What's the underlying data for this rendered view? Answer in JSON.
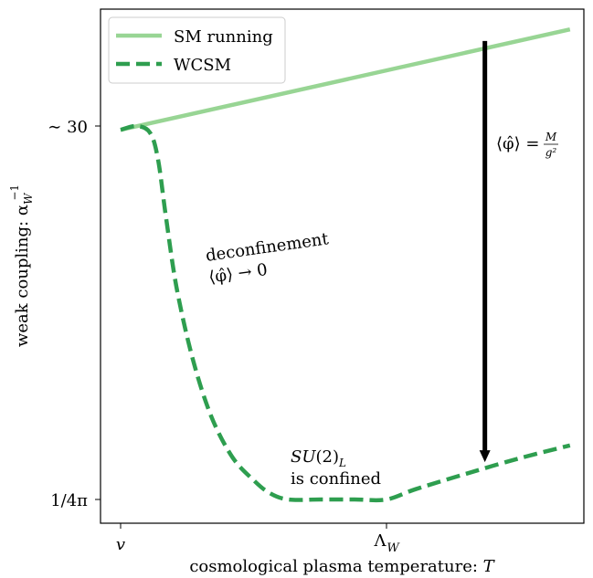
{
  "chart_data": {
    "type": "line",
    "title": "",
    "xlabel": "cosmological plasma temperature: T",
    "ylabel": "weak coupling: α_W^{-1}",
    "x_ticks": [
      {
        "label": "v",
        "value": 0
      },
      {
        "label": "Λ_W",
        "value": 1
      }
    ],
    "y_ticks": [
      {
        "label": "~ 30",
        "value": 30
      },
      {
        "label": "1/4π",
        "value": 1
      }
    ],
    "grid": false,
    "legend_position": "top-left",
    "series": [
      {
        "name": "SM running",
        "style": "solid",
        "color": "#98d594",
        "points": [
          [
            0,
            29.7
          ],
          [
            1.69,
            37.5
          ]
        ]
      },
      {
        "name": "WCSM",
        "style": "dashed",
        "color": "#2e9e4f",
        "points": [
          [
            0.0,
            29.7
          ],
          [
            0.06,
            30.0
          ],
          [
            0.11,
            29.5
          ],
          [
            0.14,
            27.5
          ],
          [
            0.17,
            23.0
          ],
          [
            0.21,
            17.5
          ],
          [
            0.27,
            12.0
          ],
          [
            0.34,
            7.5
          ],
          [
            0.42,
            4.3
          ],
          [
            0.5,
            2.5
          ],
          [
            0.56,
            1.5
          ],
          [
            0.63,
            1.0
          ],
          [
            0.75,
            1.0
          ],
          [
            0.88,
            1.0
          ],
          [
            1.0,
            1.0
          ],
          [
            1.11,
            1.8
          ],
          [
            1.3,
            3.0
          ],
          [
            1.5,
            4.2
          ],
          [
            1.69,
            5.2
          ]
        ]
      }
    ],
    "annotations": [
      {
        "id": "deconf-line1",
        "text": "deconfinement"
      },
      {
        "id": "deconf-line2",
        "text": "⟨φ̂⟩ → 0"
      },
      {
        "id": "confined-line1",
        "text": "SU(2)L"
      },
      {
        "id": "confined-line2",
        "text": "is confined"
      },
      {
        "id": "vev-label",
        "text": "⟨φ̂⟩ = M/g²"
      }
    ],
    "arrow": {
      "x": 1.37,
      "from_y": 36.6,
      "to_y": 3.9,
      "direction": "down"
    }
  },
  "text": {
    "legend_sm": "SM running",
    "legend_wcsm": "WCSM",
    "xtick_v": "v",
    "xtick_lambda": "Λ",
    "xtick_lambda_sub": "W",
    "ytick_30": "∼ 30",
    "ytick_4pi": "1/4π",
    "xlabel_main": "cosmological plasma temperature: ",
    "xlabel_T": "T",
    "ylabel_main": "weak coupling: α",
    "ylabel_sub": "W",
    "ylabel_sup": "−1",
    "deconf1": "deconfinement",
    "deconf2": "⟨φ̂⟩ → 0",
    "conf_su": "SU",
    "conf_2": "(2)",
    "conf_L": "L",
    "conf2": "is confined",
    "vev_lhs": "⟨φ̂⟩ =",
    "vev_num": "M",
    "vev_den": "g²"
  }
}
